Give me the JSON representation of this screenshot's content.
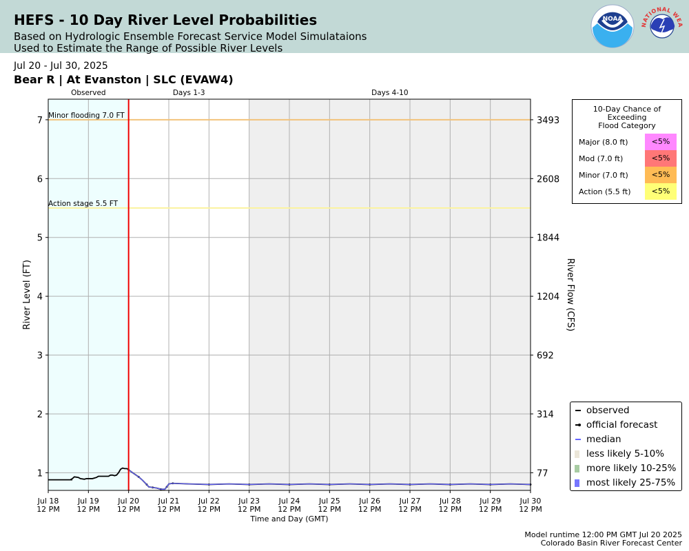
{
  "header": {
    "title": "HEFS - 10 Day River Level Probabilities",
    "subtitle_line1": "Based on Hydrologic Ensemble Forecast Service Model Simulataions",
    "subtitle_line2": "Used to Estimate the Range of Possible River Levels",
    "date_range": "Jul 20 - Jul 30, 2025",
    "station": "Bear R | At Evanston | SLC (EVAW4)",
    "noaa_logo_text": "NOAA",
    "nws_logo_text": "NATIONAL WEATHER SERVICE"
  },
  "chart_data": {
    "type": "line",
    "xlabel": "Time and Day (GMT)",
    "ylabel": "River Level (FT)",
    "y2label": "River Flow (CFS)",
    "ylim": [
      0.7,
      7.35
    ],
    "xlim_days": [
      0,
      12
    ],
    "x_ticks": [
      {
        "line1": "Jul 18",
        "line2": "12 PM"
      },
      {
        "line1": "Jul 19",
        "line2": "12 PM"
      },
      {
        "line1": "Jul 20",
        "line2": "12 PM"
      },
      {
        "line1": "Jul 21",
        "line2": "12 PM"
      },
      {
        "line1": "Jul 22",
        "line2": "12 PM"
      },
      {
        "line1": "Jul 23",
        "line2": "12 PM"
      },
      {
        "line1": "Jul 24",
        "line2": "12 PM"
      },
      {
        "line1": "Jul 25",
        "line2": "12 PM"
      },
      {
        "line1": "Jul 26",
        "line2": "12 PM"
      },
      {
        "line1": "Jul 27",
        "line2": "12 PM"
      },
      {
        "line1": "Jul 28",
        "line2": "12 PM"
      },
      {
        "line1": "Jul 29",
        "line2": "12 PM"
      },
      {
        "line1": "Jul 30",
        "line2": "12 PM"
      }
    ],
    "y_ticks": [
      1,
      2,
      3,
      4,
      5,
      6,
      7
    ],
    "y2_ticks": [
      {
        "level": 1,
        "label": "77"
      },
      {
        "level": 2,
        "label": "314"
      },
      {
        "level": 3,
        "label": "692"
      },
      {
        "level": 4,
        "label": "1204"
      },
      {
        "level": 5,
        "label": "1844"
      },
      {
        "level": 6,
        "label": "2608"
      },
      {
        "level": 7,
        "label": "3493"
      }
    ],
    "periods": [
      {
        "label": "Observed",
        "start": 0,
        "end": 2,
        "color": "#eefefe"
      },
      {
        "label": "Days 1-3",
        "start": 2,
        "end": 5,
        "color": "#ffffff"
      },
      {
        "label": "Days 4-10",
        "start": 5,
        "end": 12,
        "color": "#efefef"
      }
    ],
    "thresholds": [
      {
        "label": "Minor flooding 7.0 FT",
        "value": 7.0,
        "color": "#f2c27a"
      },
      {
        "label": "Action stage 5.5 FT",
        "value": 5.5,
        "color": "#fbf3a0"
      }
    ],
    "now_marker_day": 2,
    "now_marker_color": "#ee0000",
    "series": [
      {
        "name": "observed",
        "color": "#000000",
        "points": [
          [
            0.0,
            0.88
          ],
          [
            0.3,
            0.88
          ],
          [
            0.6,
            0.88
          ],
          [
            0.55,
            0.88
          ],
          [
            0.6,
            0.9
          ],
          [
            0.65,
            0.93
          ],
          [
            0.75,
            0.92
          ],
          [
            0.8,
            0.9
          ],
          [
            0.9,
            0.89
          ],
          [
            0.95,
            0.9
          ],
          [
            1.1,
            0.9
          ],
          [
            1.2,
            0.92
          ],
          [
            1.25,
            0.94
          ],
          [
            1.4,
            0.94
          ],
          [
            1.5,
            0.94
          ],
          [
            1.55,
            0.96
          ],
          [
            1.6,
            0.96
          ],
          [
            1.65,
            0.95
          ],
          [
            1.7,
            0.96
          ],
          [
            1.75,
            1.0
          ],
          [
            1.8,
            1.06
          ],
          [
            1.85,
            1.08
          ],
          [
            1.9,
            1.07
          ],
          [
            1.95,
            1.07
          ],
          [
            2.0,
            1.06
          ]
        ]
      },
      {
        "name": "official forecast",
        "color": "#000000",
        "points": [
          [
            2.0,
            1.05
          ],
          [
            2.1,
            1.0
          ],
          [
            2.25,
            0.93
          ],
          [
            2.35,
            0.87
          ],
          [
            2.45,
            0.8
          ],
          [
            2.5,
            0.76
          ],
          [
            2.6,
            0.75
          ],
          [
            2.7,
            0.74
          ],
          [
            2.8,
            0.72
          ],
          [
            2.9,
            0.72
          ],
          [
            2.95,
            0.76
          ],
          [
            3.0,
            0.81
          ],
          [
            3.1,
            0.82
          ],
          [
            3.5,
            0.81
          ],
          [
            4.0,
            0.8
          ],
          [
            4.5,
            0.81
          ],
          [
            5.0,
            0.8
          ],
          [
            5.5,
            0.81
          ],
          [
            6.0,
            0.8
          ],
          [
            6.5,
            0.81
          ],
          [
            7.0,
            0.8
          ],
          [
            7.5,
            0.81
          ],
          [
            8.0,
            0.8
          ],
          [
            8.5,
            0.81
          ],
          [
            9.0,
            0.8
          ],
          [
            9.5,
            0.81
          ],
          [
            10.0,
            0.8
          ],
          [
            10.5,
            0.81
          ],
          [
            11.0,
            0.8
          ],
          [
            11.5,
            0.81
          ],
          [
            12.0,
            0.8
          ]
        ]
      },
      {
        "name": "median",
        "color": "#6666ff",
        "points": [
          [
            2.0,
            1.05
          ],
          [
            2.1,
            1.0
          ],
          [
            2.25,
            0.93
          ],
          [
            2.35,
            0.87
          ],
          [
            2.45,
            0.8
          ],
          [
            2.5,
            0.76
          ],
          [
            2.6,
            0.75
          ],
          [
            2.7,
            0.74
          ],
          [
            2.8,
            0.72
          ],
          [
            2.9,
            0.72
          ],
          [
            2.95,
            0.76
          ],
          [
            3.0,
            0.81
          ],
          [
            3.1,
            0.82
          ],
          [
            3.5,
            0.81
          ],
          [
            4.0,
            0.8
          ],
          [
            4.5,
            0.81
          ],
          [
            5.0,
            0.8
          ],
          [
            5.5,
            0.81
          ],
          [
            6.0,
            0.8
          ],
          [
            6.5,
            0.81
          ],
          [
            7.0,
            0.8
          ],
          [
            7.5,
            0.81
          ],
          [
            8.0,
            0.8
          ],
          [
            8.5,
            0.81
          ],
          [
            9.0,
            0.8
          ],
          [
            9.5,
            0.81
          ],
          [
            10.0,
            0.8
          ],
          [
            10.5,
            0.81
          ],
          [
            11.0,
            0.8
          ],
          [
            11.5,
            0.81
          ],
          [
            12.0,
            0.8
          ]
        ]
      }
    ],
    "legend_placement": "bottom-right",
    "grid": true
  },
  "prob_table": {
    "title_lines": [
      "10-Day Chance of",
      "Exceeding",
      "Flood Category"
    ],
    "rows": [
      {
        "label": "Major (8.0 ft)",
        "value": "<5%",
        "color": "#ff88ff"
      },
      {
        "label": "Mod (7.0 ft)",
        "value": "<5%",
        "color": "#ff7777"
      },
      {
        "label": "Minor (7.0 ft)",
        "value": "<5%",
        "color": "#ffbb55"
      },
      {
        "label": "Action (5.5 ft)",
        "value": "<5%",
        "color": "#ffff77"
      }
    ]
  },
  "legend": {
    "items": [
      {
        "label": "observed",
        "kind": "line",
        "color": "#000000"
      },
      {
        "label": "official forecast",
        "kind": "line-dot",
        "color": "#000000"
      },
      {
        "label": "median",
        "kind": "line",
        "color": "#6666ff"
      },
      {
        "label": "less likely 5-10%",
        "kind": "patch",
        "color": "#ebe6d9"
      },
      {
        "label": "more likely 10-25%",
        "kind": "patch",
        "color": "#a8cca3"
      },
      {
        "label": "most likely 25-75%",
        "kind": "patch",
        "color": "#7777ff"
      }
    ]
  },
  "footer": {
    "runtime": "Model runtime 12:00 PM GMT Jul 20 2025",
    "center": "Colorado Basin River Forecast Center"
  }
}
